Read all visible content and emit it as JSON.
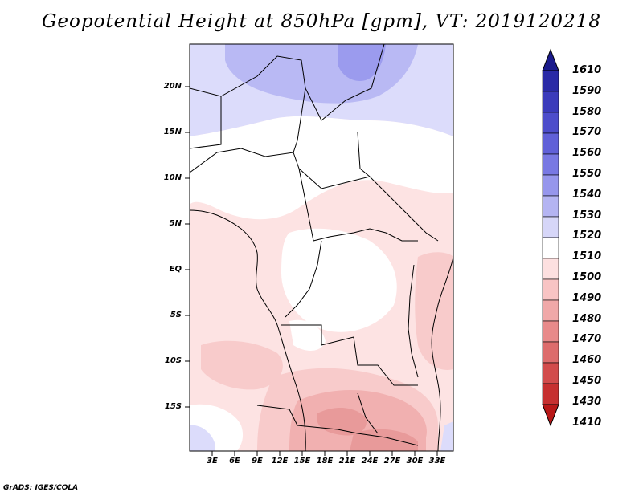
{
  "title": "Geopotential Height at 850hPa [gpm], VT: 2019120218",
  "y_axis_labels": [
    "20N",
    "15N",
    "10N",
    "5N",
    "EQ",
    "5S",
    "10S",
    "15S"
  ],
  "x_axis_labels": [
    "3E",
    "6E",
    "9E",
    "12E",
    "15E",
    "18E",
    "21E",
    "24E",
    "27E",
    "30E",
    "33E"
  ],
  "colorbar": {
    "labels": [
      "1610",
      "1590",
      "1580",
      "1570",
      "1560",
      "1550",
      "1540",
      "1530",
      "1520",
      "1510",
      "1500",
      "1490",
      "1480",
      "1470",
      "1460",
      "1450",
      "1430",
      "1410"
    ],
    "colors": [
      "#1a1a8c",
      "#2a2aa6",
      "#3b3bbb",
      "#4d4dcb",
      "#6060d8",
      "#7878e3",
      "#9696ec",
      "#b4b4f2",
      "#d6d6f8",
      "#ffffff",
      "#fde0e0",
      "#f8c4c4",
      "#f0a8a8",
      "#e88a8a",
      "#dd6c6c",
      "#d24c4c",
      "#c63030",
      "#b81818"
    ]
  },
  "credit": "GrADS: IGES/COLA",
  "fill_colors": {
    "white": "#ffffff",
    "blue_light": "#dcdcfb",
    "blue_mid": "#b9b9f4",
    "blue_dark": "#9b9bee",
    "pink_light": "#fde3e3",
    "pink_mid": "#f8cbcb",
    "pink_dark": "#f1b0b0",
    "red": "#e89a9a"
  }
}
